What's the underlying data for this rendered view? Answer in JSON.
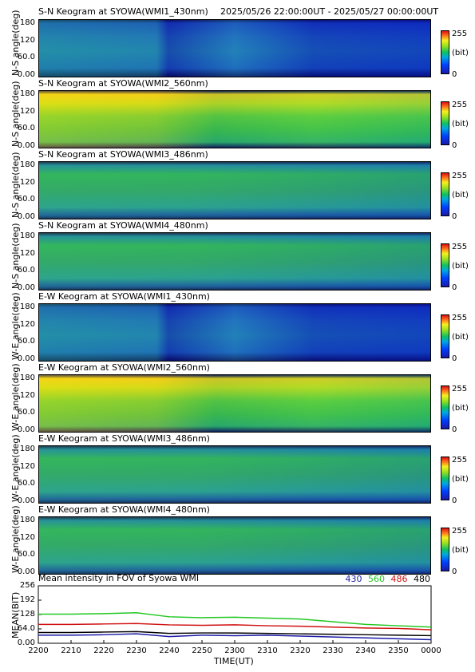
{
  "header": {
    "first_title": "S-N Keogram at SYOWA(WMI1_430nm)",
    "time_range": "2025/05/26 22:00:00UT - 2025/05/27 00:00:00UT"
  },
  "keograms": [
    {
      "title": "S-N Keogram at SYOWA(WMI1_430nm)",
      "ylabel": "N-S angle(deg)",
      "base": "low"
    },
    {
      "title": "S-N Keogram at SYOWA(WMI2_560nm)",
      "ylabel": "N-S angle(deg)",
      "base": "bright"
    },
    {
      "title": "S-N Keogram at SYOWA(WMI3_486nm)",
      "ylabel": "N-S angle(deg)",
      "base": "mid"
    },
    {
      "title": "S-N Keogram at SYOWA(WMI4_480nm)",
      "ylabel": "N-S angle(deg)",
      "base": "mid"
    },
    {
      "title": "E-W Keogram at SYOWA(WMI1_430nm)",
      "ylabel": "W-E angle(deg)",
      "base": "low"
    },
    {
      "title": "E-W Keogram at SYOWA(WMI2_560nm)",
      "ylabel": "W-E angle(deg)",
      "base": "bright"
    },
    {
      "title": "E-W Keogram at SYOWA(WMI3_486nm)",
      "ylabel": "W-E angle(deg)",
      "base": "mid"
    },
    {
      "title": "E-W Keogram at SYOWA(WMI4_480nm)",
      "ylabel": "W-E angle(deg)",
      "base": "mid"
    }
  ],
  "keogram_yticks": [
    "180",
    "120",
    "60.0",
    "0.00"
  ],
  "colorbar": {
    "max": "255",
    "unit": "(bit)",
    "min": "0"
  },
  "chart_data": {
    "type": "line",
    "title": "Mean intensity in FOV of Syowa WMI",
    "ylabel": "MEAN(BIT)",
    "xlabel": "TIME(UT)",
    "ylim": [
      0,
      256
    ],
    "yticks": [
      "256",
      "192",
      "128",
      "64.0",
      "0.00"
    ],
    "x": [
      "2200",
      "2210",
      "2220",
      "2230",
      "2240",
      "2250",
      "2300",
      "2310",
      "2320",
      "2330",
      "2340",
      "2350",
      "0000"
    ],
    "series": [
      {
        "name": "430",
        "color": "#1c1ca8",
        "values": [
          36,
          36,
          38,
          42,
          30,
          36,
          34,
          36,
          32,
          28,
          24,
          20,
          16
        ]
      },
      {
        "name": "560",
        "color": "#22c822",
        "values": [
          130,
          130,
          132,
          136,
          118,
          114,
          116,
          112,
          108,
          96,
          84,
          78,
          72
        ]
      },
      {
        "name": "486",
        "color": "#d01010",
        "values": [
          84,
          84,
          86,
          88,
          82,
          80,
          82,
          78,
          76,
          72,
          68,
          66,
          60
        ]
      },
      {
        "name": "480",
        "color": "#000000",
        "values": [
          48,
          48,
          50,
          52,
          44,
          46,
          46,
          44,
          42,
          40,
          38,
          36,
          34
        ]
      }
    ]
  }
}
